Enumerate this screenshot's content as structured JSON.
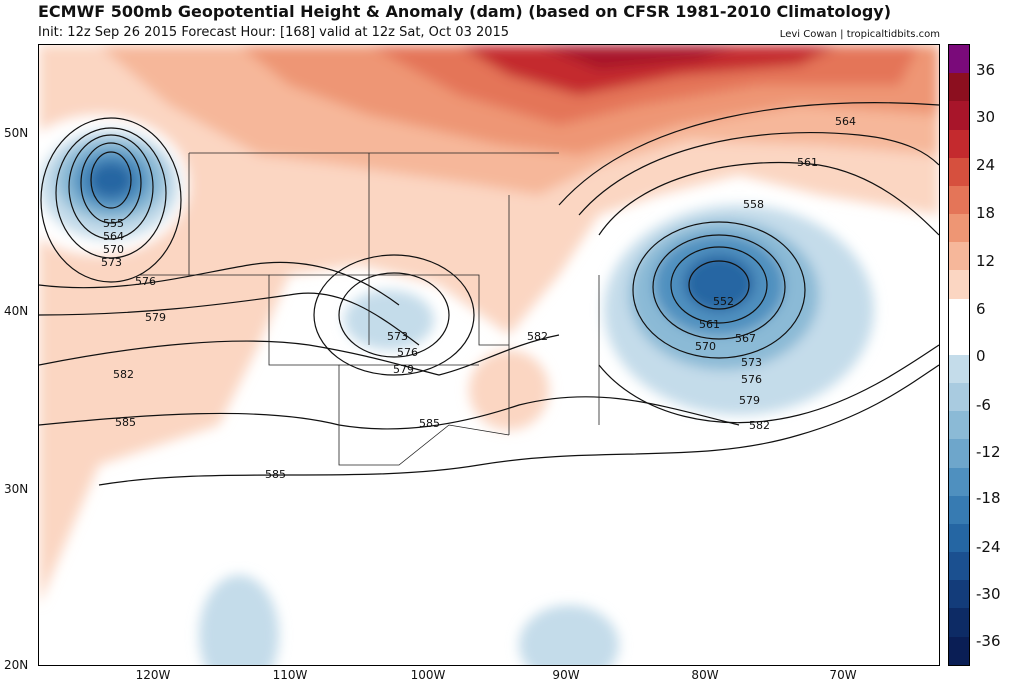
{
  "title": "ECMWF 500mb Geopotential Height & Anomaly (dam) (based on CFSR 1981-2010 Climatology)",
  "subtitle": "Init: 12z Sep 26 2015   Forecast Hour: [168]   valid at 12z Sat, Oct 03 2015",
  "credit": "Levi Cowan | tropicaltidbits.com",
  "lat_labels": [
    "50N",
    "40N",
    "30N",
    "20N"
  ],
  "lon_labels": [
    "120W",
    "110W",
    "100W",
    "90W",
    "80W",
    "70W"
  ],
  "colorbar": {
    "labels": [
      "36",
      "30",
      "24",
      "18",
      "12",
      "6",
      "0",
      "-6",
      "-12",
      "-18",
      "-24",
      "-30",
      "-36"
    ],
    "colors": [
      "#7a0a7a",
      "#8c0f1f",
      "#a8152a",
      "#c42a2e",
      "#d6503e",
      "#e47558",
      "#ee9674",
      "#f6b79a",
      "#fbd6c2",
      "#ffffff",
      "#ffffff",
      "#c4dcea",
      "#a9cbe0",
      "#8bbad6",
      "#6ea6cb",
      "#4f90bf",
      "#377bb2",
      "#2566a3",
      "#1b5090",
      "#133c7a",
      "#0d2b65",
      "#0a1e55"
    ]
  },
  "contour_labels": [
    "555",
    "564",
    "570",
    "573",
    "576",
    "579",
    "582",
    "585",
    "573",
    "576",
    "579",
    "585",
    "585",
    "582",
    "552",
    "561",
    "567",
    "570",
    "573",
    "576",
    "579",
    "582",
    "558",
    "561",
    "564"
  ]
}
